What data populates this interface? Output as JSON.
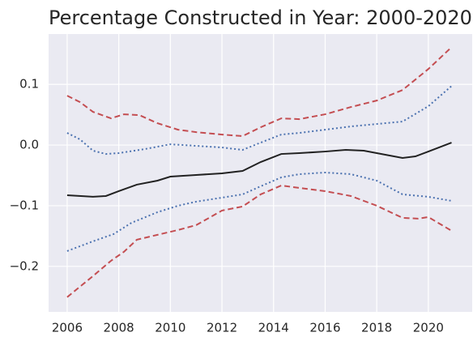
{
  "chart_data": {
    "type": "line",
    "title": "Percentage Constructed in Year: 2000-2020",
    "xlim": [
      2005.28,
      2021.7
    ],
    "ylim": [
      -0.275,
      0.183
    ],
    "xticks": [
      2006,
      2008,
      2010,
      2012,
      2014,
      2016,
      2018,
      2020
    ],
    "yticks": [
      {
        "value": -0.2,
        "label": "−0.2"
      },
      {
        "value": -0.1,
        "label": "−0.1"
      },
      {
        "value": 0,
        "label": "0.0"
      },
      0.1
    ],
    "grid": true,
    "series": [
      {
        "color": "#222222",
        "style": "solid",
        "x": [
          2006,
          2007,
          2007.5,
          2008,
          2008.7,
          2009.5,
          2010,
          2011,
          2012,
          2012.8,
          2013.5,
          2014.3,
          2015,
          2016,
          2016.8,
          2017.5,
          2018,
          2019,
          2019.5,
          2020,
          2020.9
        ],
        "values": [
          -0.0827,
          -0.0853,
          -0.084,
          -0.076,
          -0.0653,
          -0.0587,
          -0.052,
          -0.0493,
          -0.0467,
          -0.0427,
          -0.028,
          -0.0147,
          -0.0133,
          -0.0107,
          -0.008,
          -0.0093,
          -0.0133,
          -0.0213,
          -0.0187,
          -0.0107,
          0.004
        ]
      },
      {
        "color": "#4c72b0",
        "style": "dotted",
        "x": [
          2006,
          2006.5,
          2007,
          2007.5,
          2008,
          2009,
          2010,
          2011,
          2012,
          2012.8,
          2013.5,
          2014.3,
          2015,
          2016,
          2017,
          2018,
          2019,
          2020,
          2020.9
        ],
        "values": [
          0.02,
          0.0093,
          -0.0093,
          -0.0147,
          -0.0133,
          -0.0067,
          0.0013,
          -0.0013,
          -0.004,
          -0.008,
          0.004,
          0.0173,
          0.02,
          0.0253,
          0.0307,
          0.0347,
          0.0387,
          0.064,
          0.0973
        ]
      },
      {
        "color": "#4c72b0",
        "style": "dotted",
        "x": [
          2006,
          2007,
          2007.8,
          2008.5,
          2009.5,
          2010.3,
          2011,
          2012,
          2012.8,
          2013.5,
          2014.3,
          2015,
          2016,
          2017,
          2018,
          2019,
          2020,
          2020.9
        ],
        "values": [
          -0.1747,
          -0.1587,
          -0.1467,
          -0.128,
          -0.1107,
          -0.1,
          -0.0933,
          -0.0867,
          -0.0813,
          -0.068,
          -0.0533,
          -0.048,
          -0.0453,
          -0.048,
          -0.0587,
          -0.0813,
          -0.0853,
          -0.092
        ]
      },
      {
        "color": "#c44e52",
        "style": "dashed",
        "x": [
          2006,
          2006.5,
          2007,
          2007.7,
          2008.2,
          2008.8,
          2009.5,
          2010.3,
          2011,
          2012,
          2012.8,
          2013.5,
          2014.3,
          2015,
          2016,
          2017,
          2018,
          2019,
          2020,
          2020.9
        ],
        "values": [
          0.0813,
          0.0707,
          0.0547,
          0.044,
          0.0507,
          0.0493,
          0.036,
          0.0253,
          0.0213,
          0.0173,
          0.0147,
          0.0293,
          0.044,
          0.0427,
          0.0507,
          0.0627,
          0.0733,
          0.0907,
          0.1253,
          0.1613
        ]
      },
      {
        "color": "#c44e52",
        "style": "dashed",
        "x": [
          2006,
          2006.5,
          2007,
          2007.7,
          2008.2,
          2008.7,
          2009.5,
          2010.3,
          2011,
          2012,
          2012.8,
          2013.5,
          2014.3,
          2015,
          2016,
          2017,
          2018,
          2019,
          2019.6,
          2020,
          2020.9
        ],
        "values": [
          -0.2507,
          -0.2333,
          -0.216,
          -0.1907,
          -0.176,
          -0.156,
          -0.148,
          -0.14,
          -0.132,
          -0.108,
          -0.1013,
          -0.0813,
          -0.0667,
          -0.0707,
          -0.076,
          -0.084,
          -0.1,
          -0.12,
          -0.1213,
          -0.1187,
          -0.1413
        ]
      }
    ]
  }
}
